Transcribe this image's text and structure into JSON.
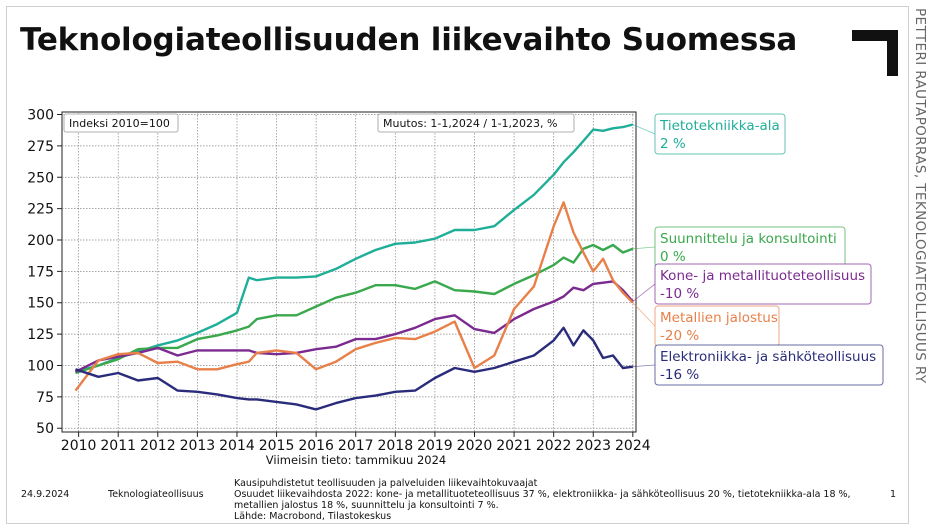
{
  "title": "Teknologiateollisuuden liikevaihto Suomessa",
  "side_text": "PETTERI RAUTAPORRAS, TEKNOLOGIATEOLLISUUS RY",
  "footer": {
    "date": "24.9.2024",
    "organization": "Teknologiateollisuus",
    "notes": [
      "Kausipuhdistetut teollisuuden ja palveluiden liikevaihtokuvaajat",
      "Osuudet liikevaihdosta 2022: kone- ja metallituoteteollisuus 37 %, elektroniikka- ja sähköteollisuus 20 %, tietotekniikka-ala 18 %,",
      "metallien jalostus 18 %, suunnittelu ja konsultointi 7 %.",
      "Lähde: Macrobond, Tilastokeskus"
    ],
    "page": "1"
  },
  "chart_data": {
    "type": "line",
    "index_label": "Indeksi 2010=100",
    "change_label": "Muutos: 1-1,2024 / 1-1,2023, %",
    "xlabel": "Viimeisin tieto: tammikuu 2024",
    "x_ticks": [
      "2010",
      "2011",
      "2012",
      "2013",
      "2014",
      "2015",
      "2016",
      "2017",
      "2018",
      "2019",
      "2020",
      "2021",
      "2022",
      "2023",
      "2024"
    ],
    "y_ticks": [
      "300",
      "275",
      "250",
      "225",
      "200",
      "175",
      "150",
      "125",
      "100",
      "75",
      "50"
    ],
    "xlim": [
      2009.58,
      2024.08
    ],
    "ylim": [
      47,
      302
    ],
    "grid": true,
    "x": [
      2009.92,
      2010.5,
      2011,
      2011.5,
      2012,
      2012.5,
      2013,
      2013.5,
      2014,
      2014.3,
      2014.5,
      2015,
      2015.5,
      2016,
      2016.5,
      2017,
      2017.5,
      2018,
      2018.5,
      2019,
      2019.5,
      2020,
      2020.5,
      2021,
      2021.5,
      2022,
      2022.25,
      2022.5,
      2022.75,
      2023,
      2023.25,
      2023.5,
      2023.75,
      2024
    ],
    "series": [
      {
        "name": "Tietotekniikka-ala",
        "change": "2 %",
        "color": "#1fae98",
        "values": [
          95,
          100,
          106,
          111,
          116,
          120,
          126,
          133,
          142,
          170,
          168,
          170,
          170,
          171,
          177,
          185,
          192,
          197,
          198,
          201,
          208,
          208,
          211,
          224,
          236,
          252,
          262,
          270,
          279,
          288,
          287,
          289,
          290,
          292
        ]
      },
      {
        "name": "Suunnittelu ja konsultointi",
        "change": "0 %",
        "color": "#3aa84c",
        "values": [
          94,
          100,
          105,
          113,
          114,
          114,
          121,
          124,
          128,
          131,
          137,
          140,
          140,
          147,
          154,
          158,
          164,
          164,
          161,
          167,
          160,
          159,
          157,
          165,
          172,
          180,
          186,
          182,
          193,
          196,
          192,
          196,
          190,
          193
        ]
      },
      {
        "name": "Kone- ja metallituoteteollisuus",
        "change": "-10 %",
        "color": "#7b2a8f",
        "values": [
          95,
          104,
          107,
          110,
          114,
          108,
          112,
          112,
          112,
          112,
          110,
          109,
          110,
          113,
          115,
          121,
          121,
          125,
          130,
          137,
          140,
          129,
          126,
          137,
          145,
          151,
          155,
          162,
          160,
          165,
          166,
          167,
          160,
          151
        ]
      },
      {
        "name": "Metallien jalostus",
        "change": "-20 %",
        "color": "#e8804a",
        "values": [
          80,
          104,
          109,
          110,
          102,
          103,
          97,
          97,
          101,
          103,
          110,
          112,
          110,
          97,
          103,
          113,
          118,
          122,
          121,
          127,
          135,
          98,
          108,
          145,
          163,
          211,
          230,
          206,
          190,
          175,
          185,
          168,
          158,
          150
        ]
      },
      {
        "name": "Elektroniikka- ja sähköteollisuus",
        "change": "-16 %",
        "color": "#2a2c7b",
        "values": [
          97,
          91,
          94,
          88,
          90,
          80,
          79,
          77,
          74,
          73,
          73,
          71,
          69,
          65,
          70,
          74,
          76,
          79,
          80,
          90,
          98,
          95,
          98,
          103,
          108,
          120,
          130,
          116,
          128,
          120,
          106,
          108,
          98,
          99
        ]
      }
    ]
  }
}
